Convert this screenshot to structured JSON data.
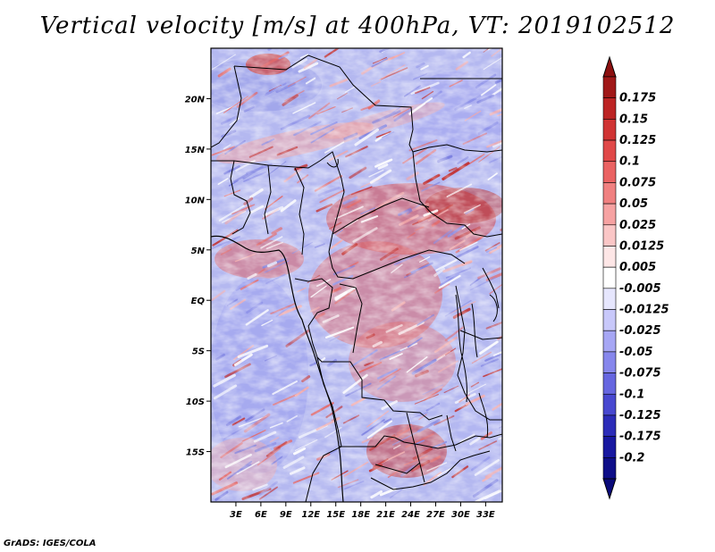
{
  "title": "Vertical velocity [m/s] at 400hPa, VT: 2019102512",
  "credit": "GrADS: IGES/COLA",
  "map": {
    "lon_range": [
      0,
      35
    ],
    "lat_range": [
      -20,
      25
    ],
    "lon_ticks": [
      {
        "value": 3,
        "label": "3E"
      },
      {
        "value": 6,
        "label": "6E"
      },
      {
        "value": 9,
        "label": "9E"
      },
      {
        "value": 12,
        "label": "12E"
      },
      {
        "value": 15,
        "label": "15E"
      },
      {
        "value": 18,
        "label": "18E"
      },
      {
        "value": 21,
        "label": "21E"
      },
      {
        "value": 24,
        "label": "24E"
      },
      {
        "value": 27,
        "label": "27E"
      },
      {
        "value": 30,
        "label": "30E"
      },
      {
        "value": 33,
        "label": "33E"
      }
    ],
    "lat_ticks": [
      {
        "value": 20,
        "label": "20N"
      },
      {
        "value": 15,
        "label": "15N"
      },
      {
        "value": 10,
        "label": "10N"
      },
      {
        "value": 5,
        "label": "5N"
      },
      {
        "value": 0,
        "label": "EQ"
      },
      {
        "value": -5,
        "label": "5S"
      },
      {
        "value": -10,
        "label": "10S"
      },
      {
        "value": -15,
        "label": "15S"
      }
    ]
  },
  "colorbar": {
    "labels": [
      "0.175",
      "0.15",
      "0.125",
      "0.1",
      "0.075",
      "0.05",
      "0.025",
      "0.0125",
      "0.005",
      "-0.005",
      "-0.0125",
      "-0.025",
      "-0.05",
      "-0.075",
      "-0.1",
      "-0.125",
      "-0.175",
      "-0.2"
    ],
    "colors": [
      "#a01818",
      "#bc2424",
      "#d03434",
      "#e04848",
      "#ea6262",
      "#f08080",
      "#f6a2a2",
      "#fac6c6",
      "#fde6e6",
      "#ffffff",
      "#e6e6fd",
      "#c8c8fa",
      "#a6a6f4",
      "#8686ec",
      "#6666e0",
      "#4848d0",
      "#2c2cb8",
      "#1818a0",
      "#0e0e88"
    ],
    "cap_top_color": "#8c1010",
    "cap_bottom_color": "#0a0a7a"
  }
}
